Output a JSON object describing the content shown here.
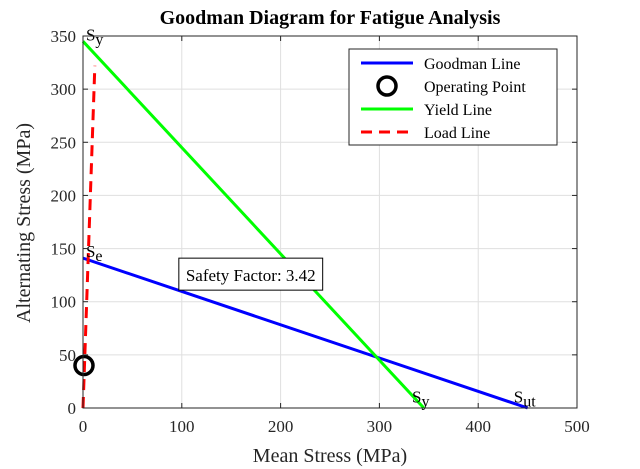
{
  "chart_data": {
    "type": "line",
    "title": "Goodman Diagram for Fatigue Analysis",
    "xlabel": "Mean Stress (MPa)",
    "ylabel": "Alternating Stress (MPa)",
    "xlim": [
      0,
      500
    ],
    "ylim": [
      0,
      350
    ],
    "xticks": [
      0,
      100,
      200,
      300,
      400,
      500
    ],
    "yticks": [
      0,
      50,
      100,
      150,
      200,
      250,
      300,
      350
    ],
    "grid": true,
    "legend_position": "top-right",
    "series": [
      {
        "name": "Goodman Line",
        "kind": "line",
        "color": "#0000ff",
        "style": "solid",
        "x": [
          0,
          450
        ],
        "y": [
          141,
          0
        ]
      },
      {
        "name": "Operating Point",
        "kind": "marker",
        "color": "#000000",
        "marker": "circle",
        "x": [
          1
        ],
        "y": [
          40
        ]
      },
      {
        "name": "Yield Line",
        "kind": "line",
        "color": "#00ff00",
        "style": "solid",
        "x": [
          0,
          345
        ],
        "y": [
          345,
          0
        ]
      },
      {
        "name": "Load Line",
        "kind": "line",
        "color": "#ff0000",
        "style": "dashed",
        "x": [
          0,
          12
        ],
        "y": [
          0,
          322
        ]
      }
    ],
    "annotations": [
      {
        "name": "label-sy-top",
        "main": "S",
        "sub": "y",
        "color": "#00cc00",
        "x": 3,
        "y": 346
      },
      {
        "name": "label-se",
        "main": "S",
        "sub": "e",
        "color": "#0000ff",
        "x": 3,
        "y": 142
      },
      {
        "name": "label-sy-bottom",
        "main": "S",
        "sub": "y",
        "color": "#00cc00",
        "x": 333,
        "y": 5
      },
      {
        "name": "label-sut",
        "main": "S",
        "sub": "ut",
        "color": "#0000ff",
        "x": 436,
        "y": 5
      }
    ],
    "textbox": {
      "text": "Safety Factor: 3.42",
      "x": 97,
      "y": 125
    }
  }
}
